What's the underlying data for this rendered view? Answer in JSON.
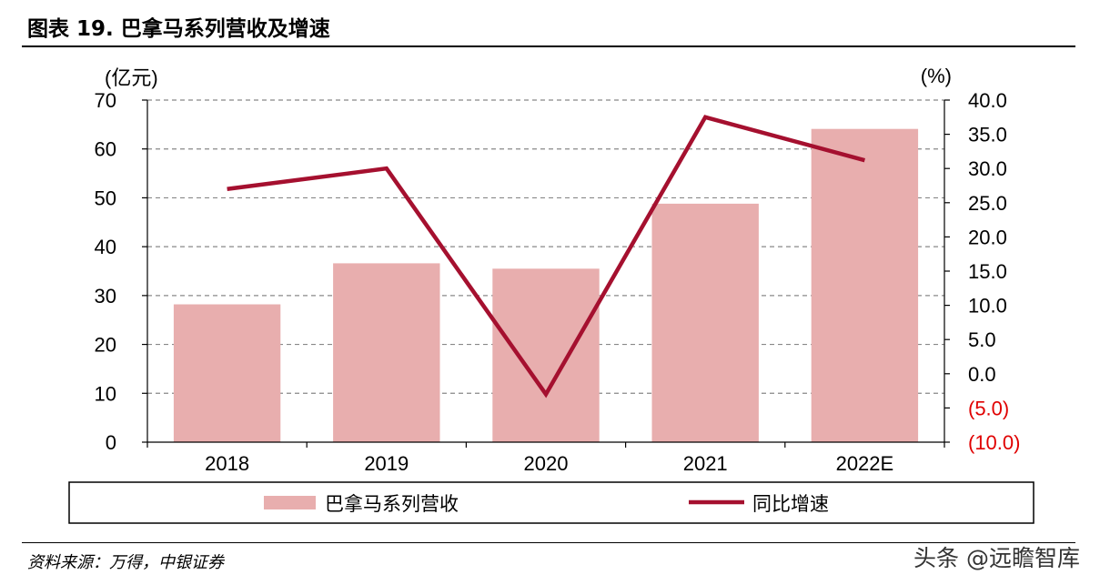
{
  "figure": {
    "title": "图表 19. 巴拿马系列营收及增速",
    "source": "资料来源：万得，中银证券",
    "watermark": "头条 @远瞻智库"
  },
  "chart_data": {
    "type": "bar",
    "categories": [
      "2018",
      "2019",
      "2020",
      "2021",
      "2022E"
    ],
    "series": [
      {
        "name": "巴拿马系列营收",
        "type": "bar",
        "axis": "left",
        "color": "#e8aeae",
        "values": [
          28.2,
          36.6,
          35.5,
          48.8,
          64.1
        ]
      },
      {
        "name": "同比增速",
        "type": "line",
        "axis": "right",
        "color": "#a5102f",
        "values": [
          27.0,
          30.0,
          -3.0,
          37.5,
          31.2
        ]
      }
    ],
    "y_left": {
      "unit_label": "(亿元)",
      "min": 0,
      "max": 70,
      "step": 10,
      "ticks": [
        "0",
        "10",
        "20",
        "30",
        "40",
        "50",
        "60",
        "70"
      ]
    },
    "y_right": {
      "unit_label": "(%)",
      "min": -10,
      "max": 40,
      "step": 5,
      "ticks": [
        "(10.0)",
        "(5.0)",
        "0.0",
        "5.0",
        "10.0",
        "15.0",
        "20.0",
        "25.0",
        "30.0",
        "35.0",
        "40.0"
      ],
      "negative_tick_color": "#e00000"
    },
    "grid": true,
    "legend": "bottom"
  }
}
